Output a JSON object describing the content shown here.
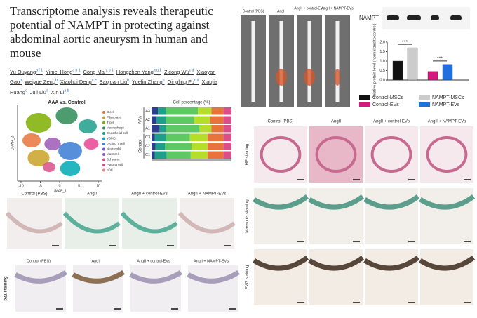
{
  "header": {
    "title": "Transcriptome analysis reveals therapeutic potential of NAMPT in protecting against abdominal aortic aneurysm in human and mouse",
    "authors": [
      {
        "name": "Yu Ouyang",
        "sup": "a f 1"
      },
      {
        "name": "Yimei Hong",
        "sup": "a b 1"
      },
      {
        "name": "Cong Mai",
        "sup": "a b 1"
      },
      {
        "name": "Hongzhen Yang",
        "sup": "a g 1"
      },
      {
        "name": "Zicong Wu",
        "sup": "c d"
      },
      {
        "name": "Xiaoyan Gao",
        "sup": "b"
      },
      {
        "name": "Weiyue Zeng",
        "sup": "b"
      },
      {
        "name": "Xiaohui Deng",
        "sup": "c e"
      },
      {
        "name": "Baojuan Liu",
        "sup": "b"
      },
      {
        "name": "Yuelin Zhang",
        "sup": "h"
      },
      {
        "name": "Qingling Fu",
        "sup": "c d"
      },
      {
        "name": "Xiaojia Huang",
        "sup": "c"
      },
      {
        "name": "Juli Liu",
        "sup": "a"
      },
      {
        "name": "Xin Li",
        "sup": "a b"
      }
    ]
  },
  "umap": {
    "title": "AAA   vs.   Control",
    "xlabel": "UMAP_1",
    "ylabel": "UMAP_2",
    "xticks": [
      -10,
      -5,
      0,
      5,
      10
    ],
    "legend": [
      "B cell",
      "Fibroblast",
      "T cell",
      "Macrophage",
      "Endothelial cell",
      "VSMC",
      "cycling T cell",
      "Neutrophil",
      "Mast cell",
      "Schwann",
      "Plasma cell",
      "pDC"
    ],
    "legend_colors": [
      "#e8743b",
      "#c9a227",
      "#7cae00",
      "#2e8b57",
      "#1f9e89",
      "#00a9b5",
      "#3a7bd5",
      "#6a5acd",
      "#9b59b6",
      "#d94f8a",
      "#e84393",
      "#f08080"
    ]
  },
  "chart_data": {
    "type": "stacked_barh",
    "title": "Cell percentage (%)",
    "categories": [
      "A3",
      "A2",
      "A1",
      "C3",
      "C2",
      "C1"
    ],
    "groups": [
      {
        "label": "AAA"
      },
      {
        "label": "Control"
      }
    ],
    "xlim": [
      0,
      100
    ],
    "series": [
      {
        "color": "#2c3e8c",
        "values": [
          8,
          6,
          10,
          4,
          5,
          4
        ]
      },
      {
        "color": "#1f9e89",
        "values": [
          10,
          12,
          8,
          14,
          12,
          15
        ]
      },
      {
        "color": "#5ec962",
        "values": [
          40,
          35,
          42,
          30,
          33,
          30
        ]
      },
      {
        "color": "#b5de2b",
        "values": [
          17,
          20,
          15,
          22,
          20,
          21
        ]
      },
      {
        "color": "#e8743b",
        "values": [
          15,
          17,
          15,
          20,
          20,
          20
        ]
      },
      {
        "color": "#d94f8a",
        "values": [
          10,
          10,
          10,
          10,
          10,
          10
        ]
      }
    ]
  },
  "blot": {
    "type": "bar",
    "label": "NAMPT",
    "ylabel": "Relative protein level (normalized to control)",
    "ylim": [
      0,
      2
    ],
    "yticks": [
      {
        "value": 0,
        "label": "0.0"
      },
      0.5,
      {
        "value": 1,
        "label": "1.0"
      },
      1.5,
      {
        "value": 2,
        "label": "2.0"
      }
    ],
    "annotations": [
      "***",
      "***"
    ],
    "series": [
      {
        "name": "Control-MSCs",
        "color": "#111111",
        "values": [
          1.0
        ]
      },
      {
        "name": "NAMPT-MSCs",
        "color": "#cccccc",
        "values": [
          1.7
        ]
      },
      {
        "name": "Control-EVs",
        "color": "#d6197f",
        "values": [
          0.45
        ]
      },
      {
        "name": "NAMPT-EVs",
        "color": "#1f6fe0",
        "values": [
          0.82
        ]
      }
    ]
  },
  "aorta": {
    "labels": [
      "Control (PBS)",
      "AngII",
      "AngII + control-EVs",
      "AngII + NAMPT-EVs"
    ]
  },
  "senescence": {
    "labels": [
      "Control (PBS)",
      "AngII",
      "AngII + control-EVs",
      "AngII + NAMPT-EVs"
    ],
    "p21_labels": [
      "Control (PBS)",
      "AngII",
      "AngII + control-EVs",
      "AngII + NAMPT-EVs"
    ],
    "p21_row": "p21 staining"
  },
  "histology": {
    "columns": [
      "Control (PBS)",
      "AngII",
      "AngII + control-EVs",
      "AngII + NAMPT-EVs"
    ],
    "rows": [
      "HE staining",
      "Masson's staining",
      "EVG staining"
    ]
  }
}
